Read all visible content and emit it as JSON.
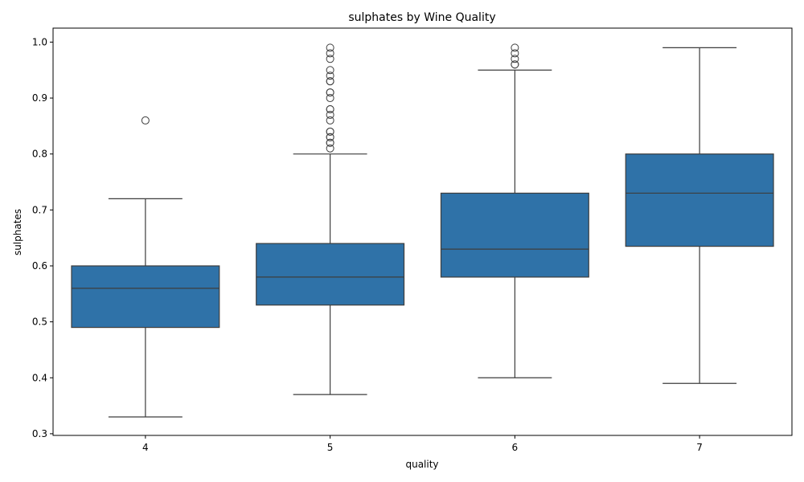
{
  "chart_data": {
    "type": "box",
    "title": "sulphates by Wine Quality",
    "xlabel": "quality",
    "ylabel": "sulphates",
    "ylim": [
      0.297,
      1.025
    ],
    "yticks": [
      "0.3",
      "0.4",
      "0.5",
      "0.6",
      "0.7",
      "0.8",
      "0.9",
      "1.0"
    ],
    "yticks_values": [
      0.3,
      0.4,
      0.5,
      0.6,
      0.7,
      0.8,
      0.9,
      1.0
    ],
    "grid": false,
    "box_color": "#2f72a8",
    "categories": [
      "4",
      "5",
      "6",
      "7"
    ],
    "boxes": [
      {
        "category": "4",
        "whisker_low": 0.33,
        "q1": 0.49,
        "median": 0.56,
        "q3": 0.6,
        "whisker_high": 0.72,
        "outliers": [
          0.86
        ]
      },
      {
        "category": "5",
        "whisker_low": 0.37,
        "q1": 0.53,
        "median": 0.58,
        "q3": 0.64,
        "whisker_high": 0.8,
        "outliers": [
          0.81,
          0.82,
          0.82,
          0.83,
          0.83,
          0.84,
          0.84,
          0.86,
          0.87,
          0.88,
          0.88,
          0.9,
          0.91,
          0.91,
          0.93,
          0.93,
          0.94,
          0.95,
          0.97,
          0.98,
          0.99
        ]
      },
      {
        "category": "6",
        "whisker_low": 0.4,
        "q1": 0.58,
        "median": 0.63,
        "q3": 0.73,
        "whisker_high": 0.95,
        "outliers": [
          0.96,
          0.96,
          0.97,
          0.98,
          0.99
        ]
      },
      {
        "category": "7",
        "whisker_low": 0.39,
        "q1": 0.635,
        "median": 0.73,
        "q3": 0.8,
        "whisker_high": 0.99,
        "outliers": []
      }
    ]
  }
}
